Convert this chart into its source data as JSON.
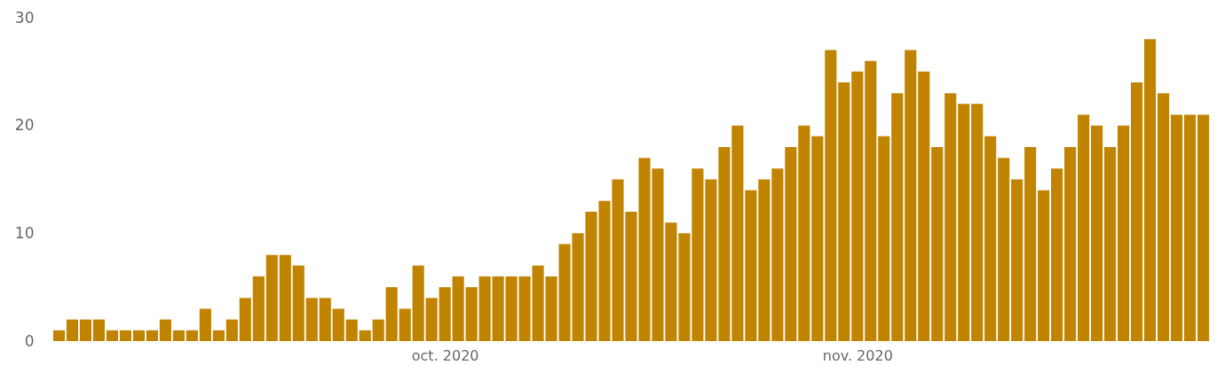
{
  "chart_data": {
    "type": "bar",
    "x": [
      "2020-09-02",
      "2020-09-03",
      "2020-09-04",
      "2020-09-05",
      "2020-09-06",
      "2020-09-07",
      "2020-09-08",
      "2020-09-09",
      "2020-09-10",
      "2020-09-11",
      "2020-09-12",
      "2020-09-13",
      "2020-09-14",
      "2020-09-15",
      "2020-09-16",
      "2020-09-17",
      "2020-09-18",
      "2020-09-19",
      "2020-09-20",
      "2020-09-21",
      "2020-09-22",
      "2020-09-23",
      "2020-09-24",
      "2020-09-25",
      "2020-09-26",
      "2020-09-27",
      "2020-09-28",
      "2020-09-29",
      "2020-09-30",
      "2020-10-01",
      "2020-10-02",
      "2020-10-03",
      "2020-10-04",
      "2020-10-05",
      "2020-10-06",
      "2020-10-07",
      "2020-10-08",
      "2020-10-09",
      "2020-10-10",
      "2020-10-11",
      "2020-10-12",
      "2020-10-13",
      "2020-10-14",
      "2020-10-15",
      "2020-10-16",
      "2020-10-17",
      "2020-10-18",
      "2020-10-19",
      "2020-10-20",
      "2020-10-21",
      "2020-10-22",
      "2020-10-23",
      "2020-10-24",
      "2020-10-25",
      "2020-10-26",
      "2020-10-27",
      "2020-10-28",
      "2020-10-29",
      "2020-10-30",
      "2020-10-31",
      "2020-11-01",
      "2020-11-02",
      "2020-11-03",
      "2020-11-04",
      "2020-11-05",
      "2020-11-06",
      "2020-11-07",
      "2020-11-08",
      "2020-11-09",
      "2020-11-10",
      "2020-11-11",
      "2020-11-12",
      "2020-11-13",
      "2020-11-14",
      "2020-11-15",
      "2020-11-16",
      "2020-11-17",
      "2020-11-18",
      "2020-11-19",
      "2020-11-20",
      "2020-11-21",
      "2020-11-22",
      "2020-11-23",
      "2020-11-24",
      "2020-11-25",
      "2020-11-26",
      "2020-11-27"
    ],
    "values": [
      1,
      2,
      2,
      2,
      1,
      1,
      1,
      1,
      2,
      1,
      1,
      3,
      1,
      2,
      4,
      6,
      8,
      8,
      7,
      4,
      4,
      3,
      2,
      1,
      2,
      5,
      3,
      7,
      4,
      5,
      6,
      5,
      6,
      6,
      6,
      6,
      7,
      6,
      9,
      10,
      12,
      13,
      15,
      12,
      17,
      16,
      11,
      10,
      16,
      15,
      18,
      20,
      14,
      15,
      16,
      18,
      20,
      19,
      27,
      24,
      25,
      26,
      19,
      23,
      27,
      25,
      18,
      23,
      22,
      22,
      19,
      17,
      15,
      18,
      14,
      16,
      18,
      21,
      20,
      18,
      20,
      24,
      28,
      23,
      21,
      21,
      21
    ],
    "color": "#c18401",
    "xlim": [
      "2020-09-01T12:00",
      "2020-11-27T12:00"
    ],
    "xticks": [
      {
        "value": "2020-10-01",
        "label": "oct. 2020"
      },
      {
        "value": "2020-11-01",
        "label": "nov. 2020"
      }
    ],
    "ylim": [
      0,
      30
    ],
    "yticks": [
      0,
      10,
      20,
      30
    ],
    "grid": false
  }
}
